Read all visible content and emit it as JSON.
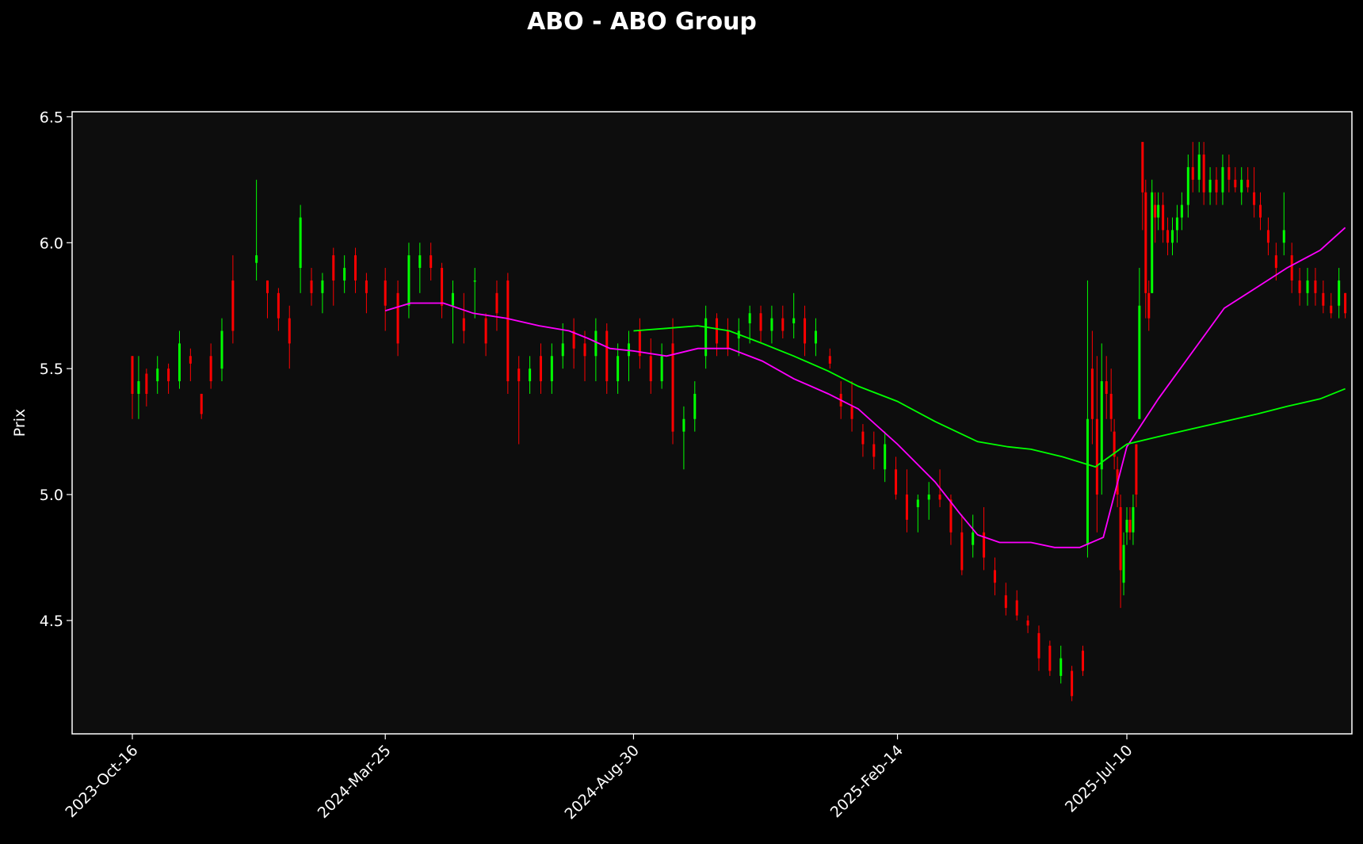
{
  "chart_data": {
    "type": "candlestick",
    "title": "ABO - ABO Group",
    "ylabel": "Prix",
    "xlabel": "",
    "ylim": [
      4.05,
      6.52
    ],
    "x_ticks": [
      "2023-Oct-16",
      "2024-Mar-25",
      "2024-Aug-30",
      "2025-Feb-14",
      "2025-Jul-10"
    ],
    "y_ticks": [
      4.5,
      5.0,
      5.5,
      6.0,
      6.5
    ],
    "colors": {
      "up": "#00ff00",
      "down": "#ff0000",
      "ma_short": "#ff00ff",
      "ma_long": "#00ff00",
      "plot_bg": "#0d0d0d",
      "page_bg": "#000000",
      "frame": "#ffffff"
    },
    "grid": false,
    "legend": "none",
    "series": [
      {
        "name": "",
        "color": "#ff00ff",
        "points": [
          [
            "2024-03-25",
            5.73
          ],
          [
            "2024-04-10",
            5.76
          ],
          [
            "2024-05-01",
            5.76
          ],
          [
            "2024-05-20",
            5.72
          ],
          [
            "2024-06-10",
            5.7
          ],
          [
            "2024-07-01",
            5.67
          ],
          [
            "2024-07-20",
            5.65
          ],
          [
            "2024-08-01",
            5.62
          ],
          [
            "2024-08-15",
            5.58
          ],
          [
            "2024-08-30",
            5.57
          ],
          [
            "2024-09-20",
            5.55
          ],
          [
            "2024-10-10",
            5.58
          ],
          [
            "2024-10-30",
            5.58
          ],
          [
            "2024-11-20",
            5.53
          ],
          [
            "2024-12-10",
            5.46
          ],
          [
            "2025-01-01",
            5.4
          ],
          [
            "2025-01-20",
            5.34
          ],
          [
            "2025-02-14",
            5.2
          ],
          [
            "2025-03-10",
            5.05
          ],
          [
            "2025-03-25",
            4.93
          ],
          [
            "2025-04-06",
            4.84
          ],
          [
            "2025-04-20",
            4.81
          ],
          [
            "2025-05-10",
            4.81
          ],
          [
            "2025-05-25",
            4.79
          ],
          [
            "2025-06-10",
            4.79
          ],
          [
            "2025-06-25",
            4.83
          ],
          [
            "2025-07-10",
            5.19
          ],
          [
            "2025-07-30",
            5.38
          ],
          [
            "2025-08-20",
            5.56
          ],
          [
            "2025-09-10",
            5.74
          ],
          [
            "2025-09-30",
            5.82
          ],
          [
            "2025-10-20",
            5.9
          ],
          [
            "2025-11-10",
            5.97
          ],
          [
            "2025-11-26",
            6.06
          ]
        ]
      },
      {
        "name": "",
        "color": "#00ff00",
        "points": [
          [
            "2024-08-30",
            5.65
          ],
          [
            "2024-09-20",
            5.66
          ],
          [
            "2024-10-10",
            5.67
          ],
          [
            "2024-10-30",
            5.65
          ],
          [
            "2024-11-20",
            5.6
          ],
          [
            "2024-12-10",
            5.55
          ],
          [
            "2025-01-01",
            5.49
          ],
          [
            "2025-01-20",
            5.43
          ],
          [
            "2025-02-14",
            5.37
          ],
          [
            "2025-03-10",
            5.29
          ],
          [
            "2025-04-06",
            5.21
          ],
          [
            "2025-04-25",
            5.19
          ],
          [
            "2025-05-10",
            5.18
          ],
          [
            "2025-05-30",
            5.15
          ],
          [
            "2025-06-20",
            5.11
          ],
          [
            "2025-07-10",
            5.2
          ],
          [
            "2025-07-30",
            5.23
          ],
          [
            "2025-08-20",
            5.26
          ],
          [
            "2025-09-10",
            5.29
          ],
          [
            "2025-10-01",
            5.32
          ],
          [
            "2025-10-20",
            5.35
          ],
          [
            "2025-11-10",
            5.38
          ],
          [
            "2025-11-26",
            5.42
          ]
        ]
      }
    ],
    "candles": [
      [
        "2023-10-16",
        5.55,
        5.55,
        5.3,
        5.4
      ],
      [
        "2023-10-20",
        5.4,
        5.55,
        5.3,
        5.45
      ],
      [
        "2023-10-25",
        5.48,
        5.5,
        5.35,
        5.4
      ],
      [
        "2023-11-01",
        5.45,
        5.55,
        5.4,
        5.5
      ],
      [
        "2023-11-08",
        5.5,
        5.52,
        5.4,
        5.45
      ],
      [
        "2023-11-15",
        5.45,
        5.65,
        5.42,
        5.6
      ],
      [
        "2023-11-22",
        5.55,
        5.58,
        5.45,
        5.52
      ],
      [
        "2023-11-29",
        5.4,
        5.4,
        5.3,
        5.32
      ],
      [
        "2023-12-05",
        5.55,
        5.6,
        5.42,
        5.45
      ],
      [
        "2023-12-12",
        5.5,
        5.7,
        5.45,
        5.65
      ],
      [
        "2023-12-19",
        5.85,
        5.95,
        5.6,
        5.65
      ],
      [
        "2024-01-03",
        5.92,
        6.25,
        5.85,
        5.95
      ],
      [
        "2024-01-10",
        5.85,
        5.85,
        5.7,
        5.8
      ],
      [
        "2024-01-17",
        5.8,
        5.82,
        5.65,
        5.7
      ],
      [
        "2024-01-24",
        5.7,
        5.75,
        5.5,
        5.6
      ],
      [
        "2024-01-31",
        5.9,
        6.15,
        5.8,
        6.1
      ],
      [
        "2024-02-07",
        5.85,
        5.9,
        5.75,
        5.8
      ],
      [
        "2024-02-14",
        5.8,
        5.88,
        5.72,
        5.85
      ],
      [
        "2024-02-21",
        5.95,
        5.98,
        5.75,
        5.85
      ],
      [
        "2024-02-28",
        5.85,
        5.95,
        5.8,
        5.9
      ],
      [
        "2024-03-06",
        5.95,
        5.98,
        5.8,
        5.85
      ],
      [
        "2024-03-13",
        5.85,
        5.88,
        5.72,
        5.8
      ],
      [
        "2024-03-25",
        5.85,
        5.9,
        5.65,
        5.75
      ],
      [
        "2024-04-02",
        5.8,
        5.85,
        5.55,
        5.6
      ],
      [
        "2024-04-09",
        5.75,
        6.0,
        5.7,
        5.95
      ],
      [
        "2024-04-16",
        5.9,
        6.0,
        5.8,
        5.95
      ],
      [
        "2024-04-23",
        5.95,
        6.0,
        5.85,
        5.9
      ],
      [
        "2024-04-30",
        5.9,
        5.92,
        5.7,
        5.75
      ],
      [
        "2024-05-07",
        5.75,
        5.85,
        5.6,
        5.8
      ],
      [
        "2024-05-14",
        5.7,
        5.8,
        5.6,
        5.65
      ],
      [
        "2024-05-21",
        5.85,
        5.9,
        5.7,
        5.85
      ],
      [
        "2024-05-28",
        5.7,
        5.72,
        5.55,
        5.6
      ],
      [
        "2024-06-04",
        5.8,
        5.85,
        5.65,
        5.72
      ],
      [
        "2024-06-11",
        5.85,
        5.88,
        5.4,
        5.45
      ],
      [
        "2024-06-18",
        5.5,
        5.55,
        5.2,
        5.45
      ],
      [
        "2024-06-25",
        5.45,
        5.55,
        5.4,
        5.5
      ],
      [
        "2024-07-02",
        5.55,
        5.6,
        5.4,
        5.45
      ],
      [
        "2024-07-09",
        5.45,
        5.6,
        5.4,
        5.55
      ],
      [
        "2024-07-16",
        5.55,
        5.68,
        5.5,
        5.6
      ],
      [
        "2024-07-23",
        5.65,
        5.7,
        5.5,
        5.58
      ],
      [
        "2024-07-30",
        5.6,
        5.65,
        5.45,
        5.55
      ],
      [
        "2024-08-06",
        5.55,
        5.7,
        5.45,
        5.65
      ],
      [
        "2024-08-13",
        5.65,
        5.68,
        5.4,
        5.45
      ],
      [
        "2024-08-20",
        5.45,
        5.6,
        5.4,
        5.55
      ],
      [
        "2024-08-27",
        5.55,
        5.65,
        5.45,
        5.6
      ],
      [
        "2024-09-03",
        5.65,
        5.7,
        5.5,
        5.55
      ],
      [
        "2024-09-10",
        5.55,
        5.62,
        5.4,
        5.45
      ],
      [
        "2024-09-17",
        5.45,
        5.6,
        5.42,
        5.55
      ],
      [
        "2024-09-24",
        5.6,
        5.7,
        5.2,
        5.25
      ],
      [
        "2024-10-01",
        5.25,
        5.35,
        5.1,
        5.3
      ],
      [
        "2024-10-08",
        5.3,
        5.45,
        5.25,
        5.4
      ],
      [
        "2024-10-15",
        5.55,
        5.75,
        5.5,
        5.7
      ],
      [
        "2024-10-22",
        5.7,
        5.72,
        5.55,
        5.6
      ],
      [
        "2024-10-29",
        5.65,
        5.7,
        5.55,
        5.58
      ],
      [
        "2024-11-05",
        5.62,
        5.7,
        5.55,
        5.65
      ],
      [
        "2024-11-12",
        5.68,
        5.75,
        5.6,
        5.72
      ],
      [
        "2024-11-19",
        5.72,
        5.75,
        5.6,
        5.65
      ],
      [
        "2024-11-26",
        5.65,
        5.75,
        5.6,
        5.7
      ],
      [
        "2024-12-03",
        5.7,
        5.75,
        5.62,
        5.65
      ],
      [
        "2024-12-10",
        5.68,
        5.8,
        5.62,
        5.7
      ],
      [
        "2024-12-17",
        5.7,
        5.75,
        5.55,
        5.6
      ],
      [
        "2024-12-24",
        5.6,
        5.7,
        5.55,
        5.65
      ],
      [
        "2025-01-02",
        5.55,
        5.58,
        5.5,
        5.52
      ],
      [
        "2025-01-09",
        5.4,
        5.45,
        5.3,
        5.35
      ],
      [
        "2025-01-16",
        5.35,
        5.45,
        5.25,
        5.3
      ],
      [
        "2025-01-23",
        5.25,
        5.28,
        5.15,
        5.2
      ],
      [
        "2025-01-30",
        5.2,
        5.25,
        5.1,
        5.15
      ],
      [
        "2025-02-06",
        5.1,
        5.25,
        5.05,
        5.2
      ],
      [
        "2025-02-13",
        5.1,
        5.15,
        4.98,
        5.0
      ],
      [
        "2025-02-20",
        5.0,
        5.1,
        4.85,
        4.9
      ],
      [
        "2025-02-27",
        4.95,
        5.0,
        4.85,
        4.98
      ],
      [
        "2025-03-06",
        4.98,
        5.05,
        4.9,
        5.0
      ],
      [
        "2025-03-13",
        5.0,
        5.1,
        4.95,
        4.98
      ],
      [
        "2025-03-20",
        4.98,
        5.0,
        4.8,
        4.85
      ],
      [
        "2025-03-27",
        4.85,
        4.92,
        4.68,
        4.7
      ],
      [
        "2025-04-03",
        4.8,
        4.92,
        4.75,
        4.85
      ],
      [
        "2025-04-10",
        4.85,
        4.95,
        4.7,
        4.75
      ],
      [
        "2025-04-17",
        4.7,
        4.75,
        4.6,
        4.65
      ],
      [
        "2025-04-24",
        4.6,
        4.65,
        4.52,
        4.55
      ],
      [
        "2025-05-01",
        4.58,
        4.62,
        4.5,
        4.52
      ],
      [
        "2025-05-08",
        4.5,
        4.52,
        4.45,
        4.48
      ],
      [
        "2025-05-15",
        4.45,
        4.48,
        4.3,
        4.35
      ],
      [
        "2025-05-22",
        4.4,
        4.42,
        4.28,
        4.3
      ],
      [
        "2025-05-29",
        4.28,
        4.4,
        4.25,
        4.35
      ],
      [
        "2025-06-05",
        4.3,
        4.32,
        4.18,
        4.2
      ],
      [
        "2025-06-12",
        4.38,
        4.4,
        4.28,
        4.3
      ],
      [
        "2025-06-15",
        4.8,
        5.85,
        4.75,
        5.3
      ],
      [
        "2025-06-18",
        5.5,
        5.65,
        5.2,
        5.3
      ],
      [
        "2025-06-21",
        5.3,
        5.55,
        4.85,
        5.0
      ],
      [
        "2025-06-24",
        5.1,
        5.6,
        5.0,
        5.45
      ],
      [
        "2025-06-27",
        5.45,
        5.55,
        5.3,
        5.4
      ],
      [
        "2025-06-30",
        5.4,
        5.5,
        5.25,
        5.3
      ],
      [
        "2025-07-02",
        5.25,
        5.3,
        5.1,
        5.15
      ],
      [
        "2025-07-04",
        5.1,
        5.15,
        4.95,
        5.0
      ],
      [
        "2025-07-06",
        4.95,
        5.0,
        4.55,
        4.7
      ],
      [
        "2025-07-08",
        4.65,
        4.85,
        4.6,
        4.8
      ],
      [
        "2025-07-10",
        4.85,
        4.95,
        4.8,
        4.9
      ],
      [
        "2025-07-12",
        4.9,
        4.95,
        4.82,
        4.85
      ],
      [
        "2025-07-14",
        4.85,
        5.0,
        4.8,
        4.95
      ],
      [
        "2025-07-16",
        5.2,
        5.2,
        4.95,
        5.0
      ],
      [
        "2025-07-18",
        5.3,
        5.9,
        5.3,
        5.75
      ],
      [
        "2025-07-20",
        6.4,
        6.4,
        6.05,
        6.2
      ],
      [
        "2025-07-22",
        6.2,
        6.25,
        5.7,
        5.8
      ],
      [
        "2025-07-24",
        5.8,
        5.85,
        5.65,
        5.7
      ],
      [
        "2025-07-26",
        5.8,
        6.25,
        5.8,
        6.2
      ],
      [
        "2025-07-28",
        6.15,
        6.2,
        6.0,
        6.1
      ],
      [
        "2025-07-30",
        6.1,
        6.2,
        6.05,
        6.15
      ],
      [
        "2025-08-02",
        6.15,
        6.2,
        6.0,
        6.05
      ],
      [
        "2025-08-05",
        6.05,
        6.1,
        5.95,
        6.0
      ],
      [
        "2025-08-08",
        6.0,
        6.1,
        5.95,
        6.05
      ],
      [
        "2025-08-11",
        6.05,
        6.15,
        6.0,
        6.1
      ],
      [
        "2025-08-14",
        6.1,
        6.2,
        6.05,
        6.15
      ],
      [
        "2025-08-18",
        6.15,
        6.35,
        6.1,
        6.3
      ],
      [
        "2025-08-21",
        6.3,
        6.4,
        6.2,
        6.25
      ],
      [
        "2025-08-25",
        6.25,
        6.4,
        6.2,
        6.35
      ],
      [
        "2025-08-28",
        6.35,
        6.4,
        6.15,
        6.2
      ],
      [
        "2025-09-01",
        6.2,
        6.3,
        6.15,
        6.25
      ],
      [
        "2025-09-05",
        6.25,
        6.3,
        6.15,
        6.2
      ],
      [
        "2025-09-09",
        6.2,
        6.35,
        6.15,
        6.3
      ],
      [
        "2025-09-13",
        6.3,
        6.35,
        6.2,
        6.25
      ],
      [
        "2025-09-17",
        6.25,
        6.3,
        6.2,
        6.22
      ],
      [
        "2025-09-21",
        6.2,
        6.3,
        6.15,
        6.25
      ],
      [
        "2025-09-25",
        6.25,
        6.3,
        6.2,
        6.22
      ],
      [
        "2025-09-29",
        6.2,
        6.3,
        6.1,
        6.15
      ],
      [
        "2025-10-03",
        6.15,
        6.2,
        6.05,
        6.1
      ],
      [
        "2025-10-08",
        6.05,
        6.1,
        5.95,
        6.0
      ],
      [
        "2025-10-13",
        5.95,
        6.0,
        5.85,
        5.9
      ],
      [
        "2025-10-18",
        6.0,
        6.2,
        5.95,
        6.05
      ],
      [
        "2025-10-23",
        5.95,
        6.0,
        5.8,
        5.85
      ],
      [
        "2025-10-28",
        5.85,
        5.9,
        5.75,
        5.8
      ],
      [
        "2025-11-02",
        5.8,
        5.9,
        5.75,
        5.85
      ],
      [
        "2025-11-07",
        5.85,
        5.9,
        5.75,
        5.8
      ],
      [
        "2025-11-12",
        5.8,
        5.85,
        5.72,
        5.75
      ],
      [
        "2025-11-17",
        5.75,
        5.8,
        5.7,
        5.72
      ],
      [
        "2025-11-22",
        5.75,
        5.9,
        5.7,
        5.85
      ],
      [
        "2025-11-26",
        5.8,
        5.8,
        5.7,
        5.72
      ]
    ]
  }
}
